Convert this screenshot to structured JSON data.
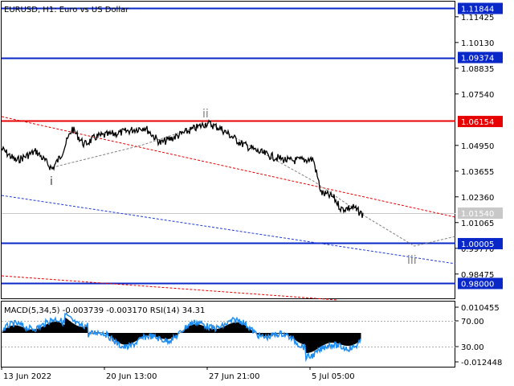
{
  "chart": {
    "title": "EURUSD, H1:  Euro vs US Dollar",
    "indicator_title": "MACD(5,34,5) -0.003739 -0.003170 RSI(14) 34.31"
  },
  "price_scale": [
    "1.11425",
    "1.10130",
    "1.08835",
    "1.07540",
    "1.04950",
    "1.03655",
    "1.02360",
    "1.01065",
    "0.99770",
    "0.98475"
  ],
  "level_tags": [
    {
      "label": "1.11844",
      "price": 1.11844,
      "fill": "#0a28c8",
      "text": "#ffffff"
    },
    {
      "label": "1.09374",
      "price": 1.09374,
      "fill": "#0a28c8",
      "text": "#ffffff"
    },
    {
      "label": "1.06154",
      "price": 1.06154,
      "fill": "#e60000",
      "text": "#ffffff"
    },
    {
      "label": "1.01540",
      "price": 1.0154,
      "fill": "#c8c8c8",
      "text": "#ffffff"
    },
    {
      "label": "1.00005",
      "price": 1.00005,
      "fill": "#0a28c8",
      "text": "#ffffff"
    },
    {
      "label": "0.98000",
      "price": 0.98,
      "fill": "#0a28c8",
      "text": "#ffffff"
    }
  ],
  "indicator_scale": [
    "0.010455",
    "70.00",
    "30.00",
    "-0.012448"
  ],
  "time_labels": [
    "13 Jun 2022",
    "20 Jun 13:00",
    "27 Jun 21:00",
    "5 Jul 05:00"
  ],
  "wave_labels": [
    "i",
    "ii",
    "iii"
  ],
  "colors": {
    "support_resistance": "#0a28c8",
    "key_level": "#e60000",
    "channel_red": "#e60000",
    "channel_blue": "#1e3cd2",
    "rsi_line": "#1e8cf0",
    "price": "#000000"
  }
}
